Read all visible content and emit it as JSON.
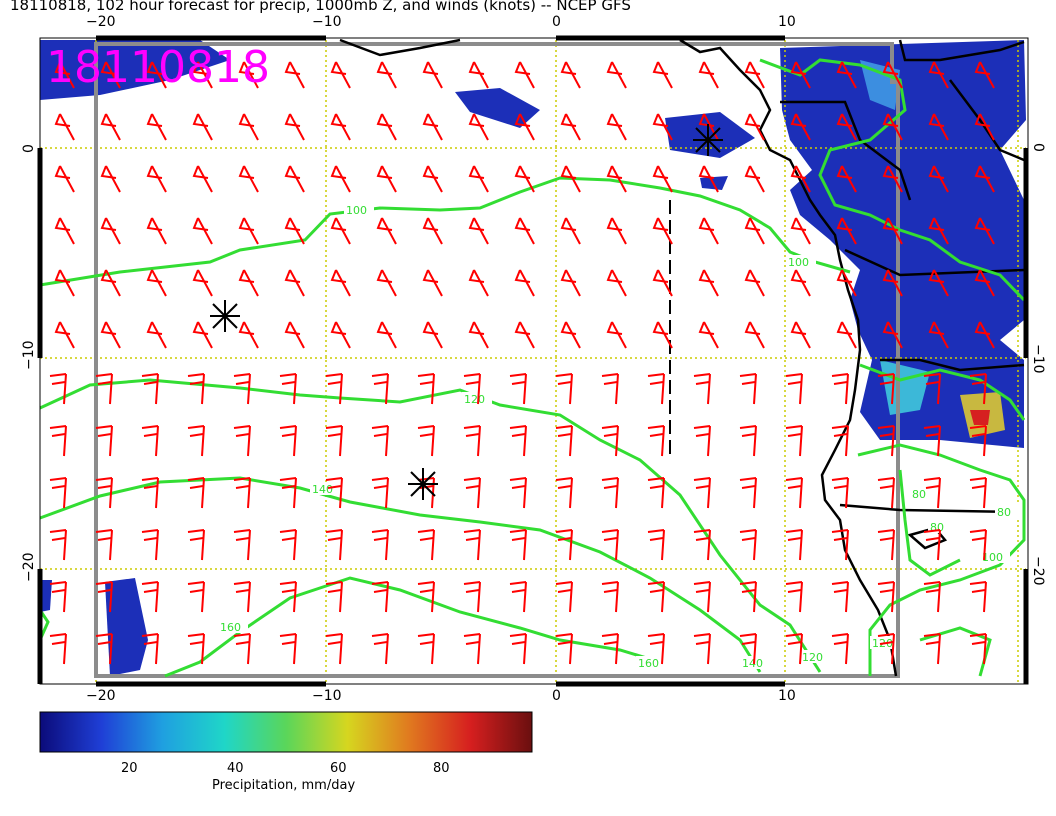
{
  "title": "18110818, 102 hour forecast for precip, 1000mb Z, and winds (knots) -- NCEP GFS",
  "stamp": "18110818",
  "axes": {
    "top_lon_labels": [
      "−20",
      "−10",
      "0",
      "10"
    ],
    "bottom_lon_labels": [
      "−20",
      "−10",
      "0",
      "10"
    ],
    "left_lat_labels": [
      "0",
      "−10",
      "−20"
    ],
    "right_lat_labels": [
      "0",
      "−10",
      "−20"
    ]
  },
  "contour_labels": [
    "100",
    "100",
    "120",
    "140",
    "160",
    "160",
    "140",
    "120",
    "80",
    "80",
    "80",
    "100",
    "120"
  ],
  "colorbar": {
    "title": "Precipitation, mm/day",
    "ticks": [
      "20",
      "40",
      "60",
      "80"
    ],
    "stops": [
      "#0b0b7a",
      "#1f3fd6",
      "#1fa0e0",
      "#1fd6c8",
      "#5ad65a",
      "#d6d61f",
      "#e07a1f",
      "#d61f1f",
      "#6a0f0f"
    ]
  },
  "colors": {
    "contour": "#33dd33",
    "barb": "#ff0000",
    "grid": "#cccc00",
    "stamp": "#ff00ff"
  },
  "map_data": {
    "lon_range": [
      -22.5,
      20
    ],
    "lat_range": [
      -25,
      5
    ],
    "grid_lon": [
      -20,
      -10,
      0,
      10
    ],
    "grid_lat": [
      0,
      -10,
      -20
    ]
  }
}
